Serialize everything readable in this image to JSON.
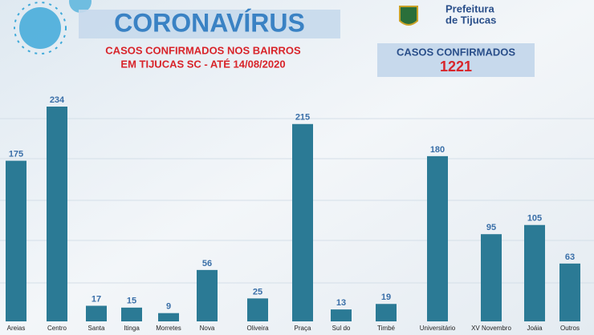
{
  "chart_data": {
    "type": "bar",
    "title": "CORONAVÍRUS",
    "subtitle": [
      "CASOS CONFIRMADOS NOS BAIRROS",
      "EM TIJUCAS SC - ATÉ 14/08/2020"
    ],
    "logo_text": [
      "Prefeitura",
      "de Tijucas"
    ],
    "total_label": "CASOS CONFIRMADOS",
    "total": 1221,
    "categories": [
      "Areias",
      "Centro",
      "Santa",
      "Itinga",
      "Morretes",
      "Nova",
      "Oliveira",
      "Praça",
      "Sul do",
      "Timbé",
      "Universitário",
      "XV Novembro",
      "Joáia",
      "Outros"
    ],
    "values": [
      175,
      234,
      17,
      15,
      9,
      56,
      25,
      215,
      13,
      19,
      180,
      95,
      105,
      63
    ],
    "color": "#2b7a95"
  }
}
